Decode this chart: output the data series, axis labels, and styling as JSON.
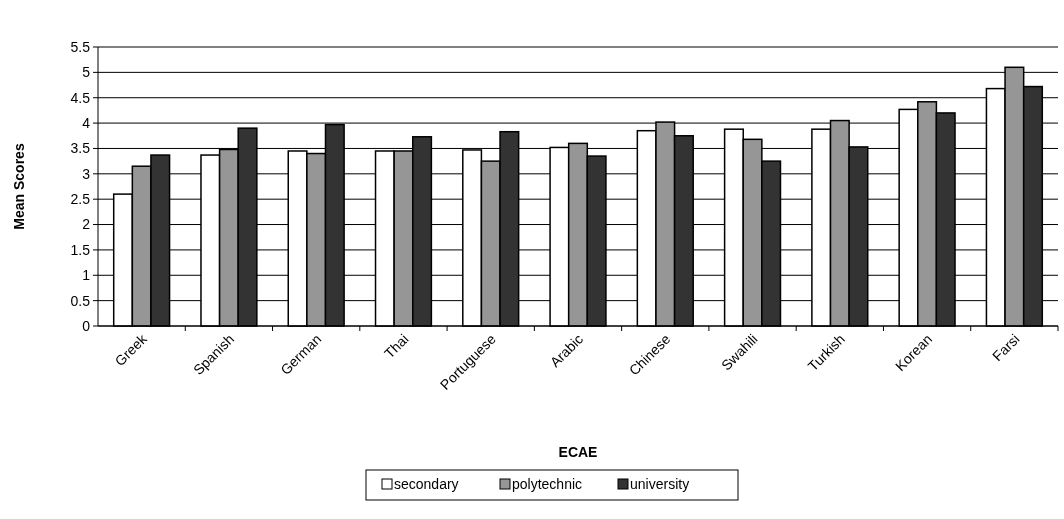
{
  "chart_data": {
    "type": "bar",
    "xlabel": "ECAE",
    "ylabel": "Mean Scores",
    "categories": [
      "Greek",
      "Spanish",
      "German",
      "Thai",
      "Portuguese",
      "Arabic",
      "Chinese",
      "Swahili",
      "Turkish",
      "Korean",
      "Farsi"
    ],
    "series": [
      {
        "name": "secondary",
        "color": "#ffffff",
        "values": [
          2.6,
          3.37,
          3.45,
          3.45,
          3.47,
          3.52,
          3.85,
          3.88,
          3.88,
          4.27,
          4.68
        ]
      },
      {
        "name": "polytechnic",
        "color": "#969696",
        "values": [
          3.15,
          3.48,
          3.4,
          3.45,
          3.25,
          3.6,
          4.02,
          3.68,
          4.05,
          4.42,
          5.1
        ]
      },
      {
        "name": "university",
        "color": "#333333",
        "values": [
          3.37,
          3.9,
          3.97,
          3.73,
          3.83,
          3.35,
          3.75,
          3.25,
          3.53,
          4.2,
          4.72
        ]
      }
    ],
    "ylim": [
      0,
      5.5
    ],
    "yticks": [
      0,
      0.5,
      1,
      1.5,
      2,
      2.5,
      3,
      3.5,
      4,
      4.5,
      5,
      5.5
    ],
    "grid": "y",
    "legend": "bottom"
  }
}
